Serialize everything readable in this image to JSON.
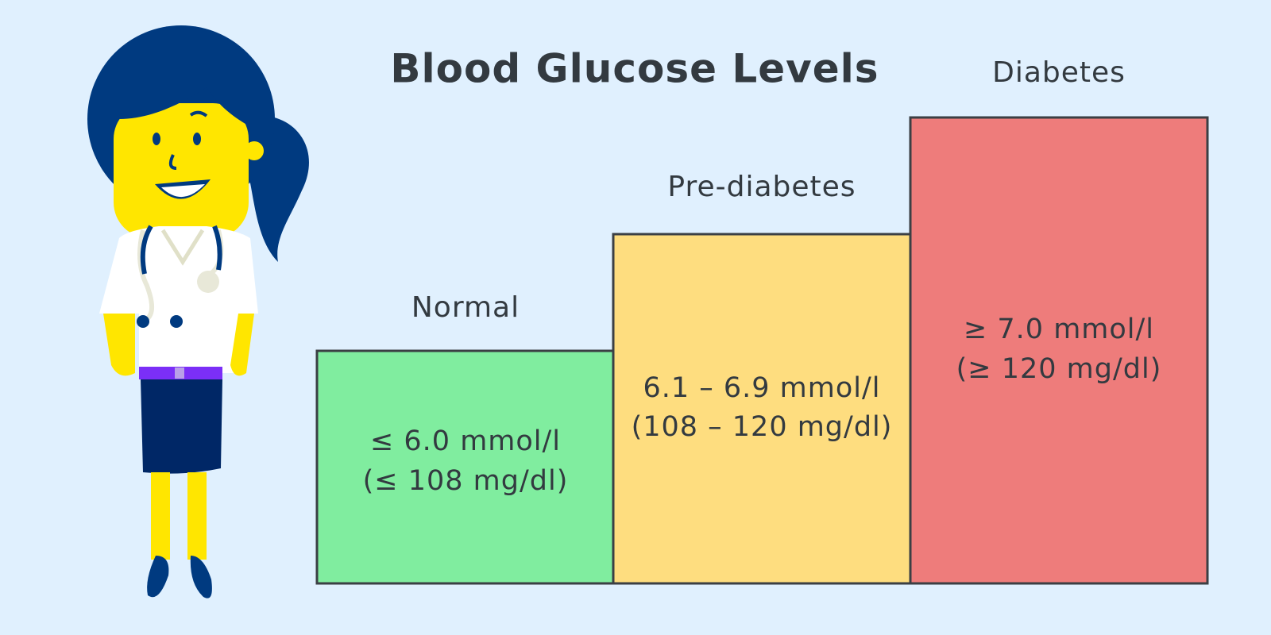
{
  "title": "Blood Glucose Levels",
  "levels": [
    {
      "label": "Normal",
      "lines": [
        "≤ 6.0 mmol/l",
        "(≤ 108 mg/dl)"
      ]
    },
    {
      "label": "Pre-diabetes",
      "lines": [
        "6.1 – 6.9 mmol/l",
        "(108 – 120 mg/dl)"
      ]
    },
    {
      "label": "Diabetes",
      "lines": [
        "≥ 7.0 mmol/l",
        "(≥ 120 mg/dl)"
      ]
    }
  ]
}
